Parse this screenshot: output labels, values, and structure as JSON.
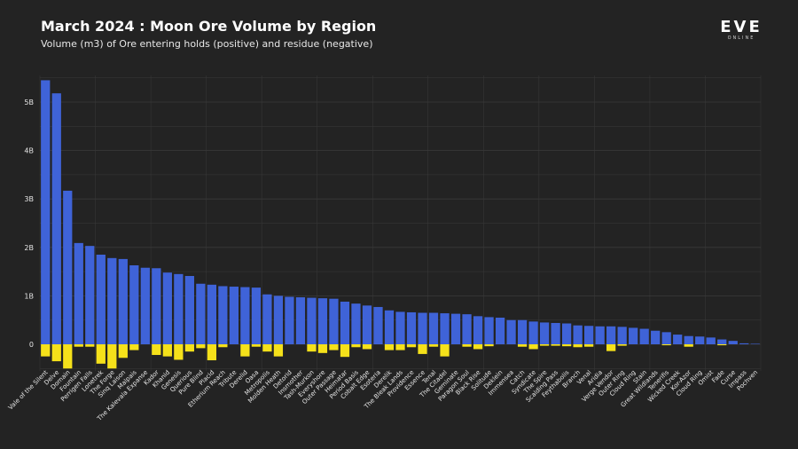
{
  "header": {
    "title": "March 2024 : Moon Ore Volume by Region",
    "subtitle": "Volume (m3) of Ore entering holds (positive) and residue (negative)"
  },
  "logo": {
    "main": "EVE",
    "sub": "ONLINE"
  },
  "colors": {
    "background": "#232323",
    "positive": "#3f63d8",
    "negative": "#f5e11a",
    "grid": "#3a3a3a"
  },
  "chart_data": {
    "type": "bar",
    "title": "March 2024 : Moon Ore Volume by Region",
    "subtitle": "Volume (m3) of Ore entering holds (positive) and residue (negative)",
    "xlabel": "",
    "ylabel": "",
    "ylim": [
      -0.55,
      5.55
    ],
    "yticks": [
      0,
      1,
      2,
      3,
      4,
      5
    ],
    "ytick_labels": [
      "0",
      "1B",
      "2B",
      "3B",
      "4B",
      "5B"
    ],
    "unit": "billion m3",
    "categories": [
      "Vale of the Silent",
      "Delve",
      "Domain",
      "Fountain",
      "Perrigen Falls",
      "Lonetrek",
      "The Forge",
      "Sinq Laison",
      "Malpais",
      "The Kalevala Expanse",
      "Kador",
      "Khanid",
      "Genesis",
      "Querious",
      "Pure Blind",
      "Placid",
      "Etherium Reach",
      "Tribute",
      "Derelid",
      "Oasa",
      "Metropolis",
      "Molden Heath",
      "Detorid",
      "Insmother",
      "Tash-Murkon",
      "Everyshore",
      "Outer Passage",
      "Heimatar",
      "Period Basis",
      "Cobalt Edge",
      "Esoteria",
      "Derelik",
      "The Bleak Lands",
      "Providence",
      "Essence",
      "Tenal",
      "The Citadel",
      "Geminate",
      "Paragon Soul",
      "Black Rise",
      "Solitude",
      "Deklein",
      "Immensea",
      "Catch",
      "Syndicate",
      "The Spire",
      "Scalding Pass",
      "Feythabolis",
      "Branch",
      "Venal",
      "Aridia",
      "Verge Vendor",
      "Outer Ring",
      "Cloud Ring",
      "Stain",
      "Great Wildlands",
      "Tenerifis",
      "Wicked Creek",
      "Kor-Azor",
      "Cloud Ring",
      "Omist",
      "Fade",
      "Curse",
      "Impass",
      "Pochven"
    ],
    "series": [
      {
        "name": "Ore entering holds (positive)",
        "values": [
          5.45,
          5.18,
          3.17,
          2.09,
          2.03,
          1.85,
          1.78,
          1.76,
          1.63,
          1.58,
          1.57,
          1.48,
          1.45,
          1.41,
          1.25,
          1.23,
          1.2,
          1.19,
          1.18,
          1.17,
          1.03,
          1.0,
          0.98,
          0.97,
          0.96,
          0.95,
          0.94,
          0.88,
          0.84,
          0.8,
          0.77,
          0.7,
          0.67,
          0.66,
          0.65,
          0.65,
          0.64,
          0.63,
          0.62,
          0.58,
          0.56,
          0.55,
          0.5,
          0.5,
          0.47,
          0.45,
          0.44,
          0.43,
          0.39,
          0.38,
          0.37,
          0.37,
          0.36,
          0.34,
          0.32,
          0.28,
          0.25,
          0.2,
          0.17,
          0.16,
          0.14,
          0.1,
          0.07,
          0.02,
          0.01
        ]
      },
      {
        "name": "Residue (negative)",
        "values": [
          -0.25,
          -0.35,
          -0.5,
          -0.05,
          -0.05,
          -0.4,
          -0.5,
          -0.28,
          -0.12,
          0,
          -0.22,
          -0.25,
          -0.32,
          -0.15,
          -0.08,
          -0.33,
          -0.06,
          0,
          -0.25,
          -0.05,
          -0.15,
          -0.25,
          0,
          0,
          -0.15,
          -0.18,
          -0.12,
          -0.26,
          -0.06,
          -0.1,
          0,
          -0.12,
          -0.12,
          -0.06,
          -0.2,
          -0.05,
          -0.25,
          0,
          -0.05,
          -0.1,
          -0.04,
          0,
          0,
          -0.05,
          -0.1,
          -0.03,
          -0.03,
          -0.04,
          -0.06,
          -0.05,
          0,
          -0.14,
          -0.03,
          0,
          0,
          0,
          -0.02,
          0,
          -0.05,
          0,
          0,
          -0.02,
          0,
          0,
          0
        ]
      }
    ]
  }
}
